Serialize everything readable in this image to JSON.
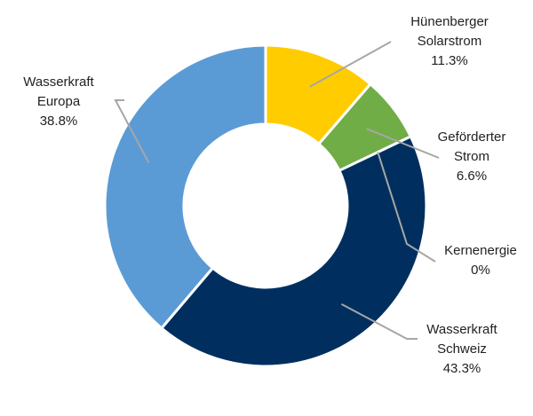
{
  "chart_data": {
    "type": "donut",
    "series": [
      {
        "key": "hunenberger",
        "label_lines": [
          "Hünenberger",
          "Solarstrom"
        ],
        "value_text": "11.3%",
        "value": 11.3,
        "color": "#FFCC00"
      },
      {
        "key": "gefoerderter",
        "label_lines": [
          "Geförderter",
          "Strom"
        ],
        "value_text": "6.6%",
        "value": 6.6,
        "color": "#70AD47"
      },
      {
        "key": "kernenergie",
        "label_lines": [
          "Kernenergie"
        ],
        "value_text": "0%",
        "value": 0,
        "color": "#002F5F"
      },
      {
        "key": "wasserkraft_schweiz",
        "label_lines": [
          "Wasserkraft",
          "Schweiz"
        ],
        "value_text": "43.3%",
        "value": 43.3,
        "color": "#002F5F"
      },
      {
        "key": "wasserkraft_europa",
        "label_lines": [
          "Wasserkraft",
          "Europa"
        ],
        "value_text": "38.8%",
        "value": 38.8,
        "color": "#5B9BD5"
      }
    ],
    "leader_line_color": "#A6A6A6"
  }
}
